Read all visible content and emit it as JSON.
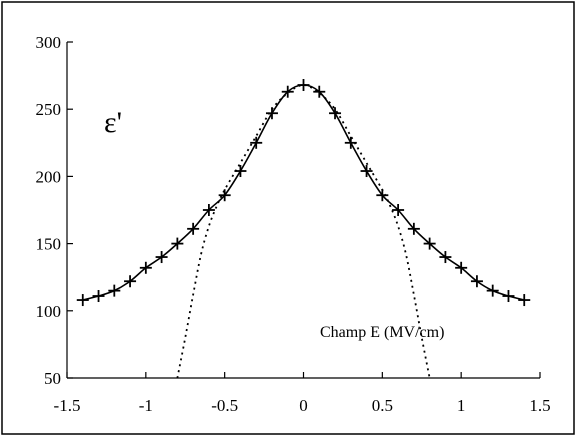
{
  "chart_data": {
    "type": "line",
    "title": "",
    "ylabel": "ε'",
    "xlabel": "",
    "annotation": "Champ E (MV/cm)",
    "xlim": [
      -1.5,
      1.5
    ],
    "ylim": [
      50,
      300
    ],
    "x_ticks": [
      "-1.5",
      "-1",
      "-0.5",
      "0",
      "0.5",
      "1",
      "1.5"
    ],
    "y_ticks": [
      "50",
      "100",
      "150",
      "200",
      "250",
      "300"
    ],
    "grid": false,
    "series": [
      {
        "style": "solid-with-plus-markers",
        "color": "#000000",
        "x": [
          -1.4,
          -1.3,
          -1.2,
          -1.1,
          -1.0,
          -0.9,
          -0.8,
          -0.7,
          -0.6,
          -0.5,
          -0.4,
          -0.3,
          -0.2,
          -0.1,
          0.0,
          0.1,
          0.2,
          0.3,
          0.4,
          0.5,
          0.6,
          0.7,
          0.8,
          0.9,
          1.0,
          1.1,
          1.2,
          1.3,
          1.4
        ],
        "y": [
          108,
          111,
          115,
          122,
          132,
          140,
          150,
          161,
          175,
          186,
          204,
          225,
          247,
          263,
          268,
          263,
          247,
          225,
          204,
          186,
          175,
          161,
          150,
          140,
          132,
          122,
          115,
          111,
          108
        ]
      },
      {
        "style": "dotted",
        "color": "#000000",
        "x": [
          -0.8,
          -0.75,
          -0.7,
          -0.65,
          -0.6,
          -0.55,
          -0.5,
          -0.4,
          -0.3,
          -0.2,
          -0.1,
          0.0,
          0.1,
          0.2,
          0.3,
          0.4,
          0.5,
          0.55,
          0.6,
          0.65,
          0.7,
          0.75,
          0.8
        ],
        "y": [
          50,
          80,
          112,
          142,
          163,
          178,
          190,
          210,
          230,
          250,
          262,
          268,
          262,
          250,
          230,
          210,
          190,
          178,
          163,
          142,
          112,
          80,
          50
        ]
      }
    ]
  }
}
